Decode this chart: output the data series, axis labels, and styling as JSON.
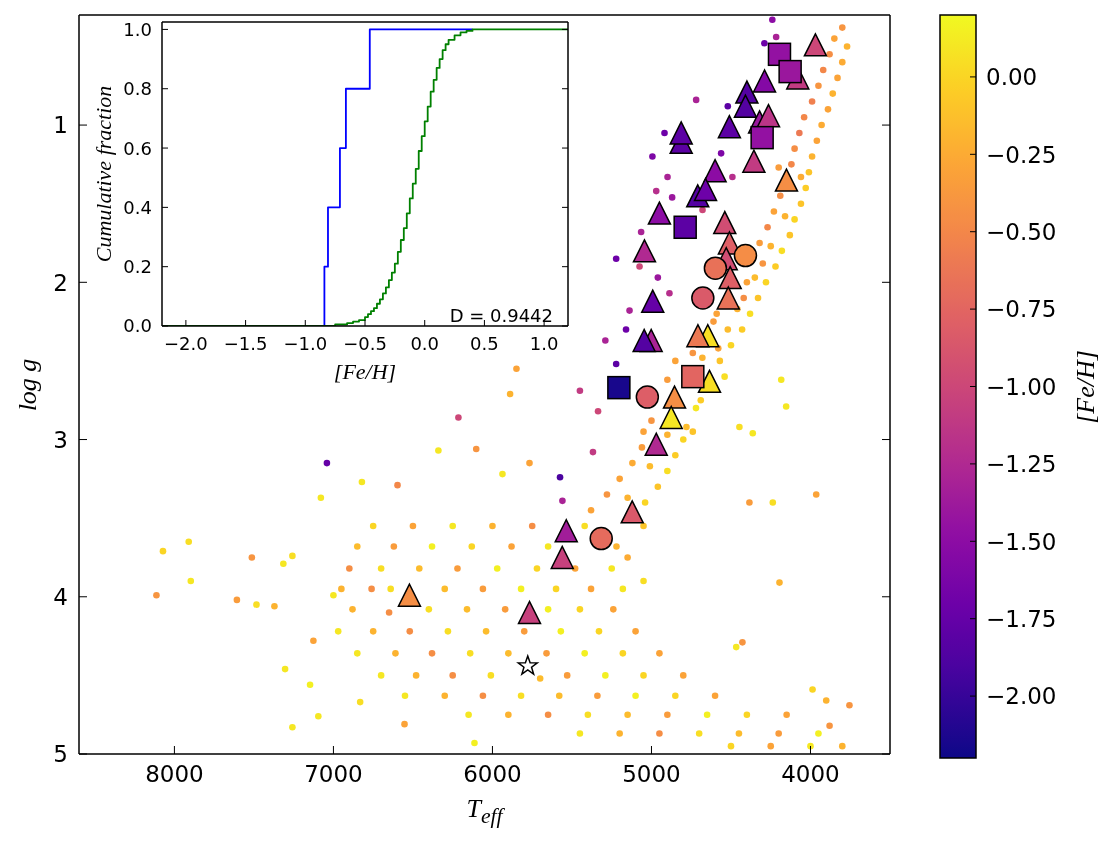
{
  "chart_data": [
    {
      "type": "scatter",
      "xlabel": "T$_{eff}$",
      "ylabel": "log g",
      "clabel": "[Fe/H]",
      "xlim": [
        8600,
        3500
      ],
      "xticks": [
        8000,
        7000,
        6000,
        5000,
        4000
      ],
      "ylim": [
        5,
        0.3
      ],
      "yticks": [
        1,
        2,
        3,
        4,
        5
      ],
      "clim": [
        -2.2,
        0.2
      ],
      "cticks": [
        {
          "value": 0,
          "label": "0.00"
        },
        {
          "value": -0.25,
          "label": "−0.25"
        },
        {
          "value": -0.5,
          "label": "−0.50"
        },
        {
          "value": -0.75,
          "label": "−0.75"
        },
        {
          "value": -1,
          "label": "−1.00"
        },
        {
          "value": -1.25,
          "label": "−1.25"
        },
        {
          "value": -1.5,
          "label": "−1.50"
        },
        {
          "value": -1.75,
          "label": "−1.75"
        },
        {
          "value": -2,
          "label": "−2.00"
        }
      ],
      "series": [
        {
          "marker": "circle",
          "x": [
            6750,
            6500,
            6250,
            6000,
            5750,
            5420,
            6850,
            6620,
            6380,
            6130,
            5880,
            5650,
            5220,
            6900,
            6700,
            6460,
            6220,
            5970,
            5720,
            5480,
            5250,
            6950,
            6760,
            6640,
            6300,
            6060,
            5820,
            5600,
            5380,
            5180,
            6880,
            6650,
            6400,
            6160,
            5920,
            5650,
            5450,
            5240,
            6970,
            6750,
            6520,
            6280,
            6040,
            5800,
            5570,
            5330,
            5100,
            6850,
            6610,
            6380,
            6140,
            5900,
            5660,
            5420,
            5180,
            4950,
            6700,
            6480,
            6250,
            6010,
            5700,
            5530,
            5290,
            5050,
            4800,
            6550,
            6300,
            6060,
            5820,
            5580,
            5340,
            5100,
            4850,
            4600,
            6150,
            5900,
            5650,
            5400,
            5150,
            4900,
            4650,
            4400,
            4150,
            5450,
            5200,
            4950,
            4700,
            4450,
            4200,
            3950,
            4500,
            4250,
            4000,
            3800,
            3800,
            3850,
            3770,
            3880,
            3800,
            3920,
            3830,
            3950,
            3860,
            3990,
            3890,
            4040,
            3930,
            4070,
            3960,
            4100,
            3990,
            4120,
            4010,
            4200,
            4030,
            4060,
            4190,
            4060,
            4230,
            4100,
            4160,
            4270,
            4130,
            4320,
            4180,
            4250,
            4300,
            4220,
            4400,
            4280,
            4350,
            4420,
            4330,
            4590,
            4380,
            4460,
            4610,
            4430,
            4580,
            4500,
            4520,
            4740,
            4570,
            4850,
            4540,
            4680,
            4900,
            4690,
            4720,
            4780,
            5000,
            4740,
            5050,
            4800,
            4900,
            5060,
            4850,
            5120,
            4900,
            5010,
            5200,
            4960,
            5280,
            5040,
            5150,
            5380,
            5050,
            5150,
            5050,
            4240,
            4290,
            4216,
            4719,
            4918,
            4994,
            4899,
            4970,
            4870,
            5065,
            5222,
            5075,
            4960,
            4887,
            4520,
            4491,
            4562,
            4679,
            5138,
            5160,
            5290,
            5222,
            5450,
            5336,
            5368,
            5575,
            5560,
            7041,
            6214,
            8113,
            8072,
            7910,
            7897,
            7513,
            7607,
            7484,
            7371,
            7315,
            7258,
            7304,
            7258,
            7147,
            7095,
            7079,
            6821,
            6597,
            6340,
            6102,
            5889,
            5849,
            7000,
            7126,
            6832,
            6553,
            6113,
            3964,
            4195,
            4237,
            4384,
            3987,
            3755,
            3901,
            3880,
            4467,
            4428,
            4184,
            4153,
            4447,
            4363,
            5767,
            5937
          ],
          "values": [
            3.55,
            3.55,
            3.55,
            3.55,
            3.55,
            3.55,
            3.68,
            3.68,
            3.68,
            3.68,
            3.68,
            3.68,
            3.68,
            3.82,
            3.82,
            3.82,
            3.82,
            3.82,
            3.82,
            3.82,
            3.82,
            3.95,
            3.95,
            3.95,
            3.95,
            3.95,
            3.95,
            3.95,
            3.95,
            3.95,
            4.08,
            4.1,
            4.08,
            4.08,
            4.08,
            4.08,
            4.08,
            4.08,
            4.22,
            4.22,
            4.22,
            4.22,
            4.22,
            4.22,
            4.22,
            4.22,
            4.22,
            4.36,
            4.36,
            4.36,
            4.36,
            4.36,
            4.36,
            4.36,
            4.36,
            4.36,
            4.5,
            4.5,
            4.5,
            4.5,
            4.52,
            4.5,
            4.5,
            4.5,
            4.5,
            4.63,
            4.63,
            4.63,
            4.63,
            4.63,
            4.63,
            4.63,
            4.63,
            4.63,
            4.75,
            4.75,
            4.75,
            4.75,
            4.75,
            4.75,
            4.75,
            4.75,
            4.75,
            4.87,
            4.87,
            4.87,
            4.87,
            4.87,
            4.87,
            4.87,
            4.95,
            4.95,
            4.95,
            4.95,
            0.38,
            0.45,
            0.5,
            0.55,
            0.6,
            0.65,
            0.7,
            0.75,
            0.8,
            0.85,
            0.9,
            0.95,
            1.0,
            1.05,
            1.1,
            1.15,
            1.2,
            1.25,
            1.3,
            1.27,
            1.4,
            1.33,
            1.45,
            1.5,
            1.55,
            1.6,
            1.58,
            1.65,
            1.7,
            1.75,
            1.8,
            1.77,
            1.88,
            1.9,
            2.0,
            2.0,
            1.97,
            2.1,
            2.1,
            2.2,
            2.2,
            2.17,
            2.25,
            2.3,
            2.42,
            2.4,
            2.3,
            2.45,
            2.5,
            2.5,
            2.6,
            2.48,
            2.62,
            2.75,
            2.8,
            2.92,
            2.88,
            2.95,
            2.95,
            3.0,
            2.97,
            3.05,
            3.1,
            3.15,
            3.2,
            3.17,
            3.25,
            3.3,
            3.35,
            3.4,
            3.37,
            3.45,
            3.55,
            3.75,
            3.9,
            0.33,
            0.48,
            0.44,
            0.84,
            1.05,
            1.2,
            1.33,
            1.42,
            1.46,
            1.68,
            1.85,
            1.9,
            1.97,
            2.07,
            0.88,
            1.33,
            1.18,
            1.54,
            2.18,
            2.3,
            2.37,
            2.52,
            2.69,
            2.82,
            3.08,
            3.24,
            3.39,
            3.15,
            2.86,
            3.99,
            3.71,
            3.65,
            3.9,
            3.75,
            4.02,
            4.05,
            4.06,
            3.79,
            3.74,
            4.46,
            4.83,
            4.56,
            4.76,
            3.37,
            3.27,
            3.29,
            3.07,
            3.06,
            2.71,
            2.55,
            3.99,
            4.28,
            4.67,
            4.81,
            4.93,
            3.35,
            3.91,
            3.4,
            3.4,
            4.59,
            4.69,
            4.66,
            4.82,
            4.32,
            4.29,
            2.62,
            2.79,
            2.92,
            2.96,
            3.15,
            3.22
          ],
          "cvalues": [
            0,
            -0.3,
            0.1,
            -0.2,
            -0.45,
            0.05,
            -0.15,
            -0.35,
            0.15,
            0,
            -0.3,
            0.1,
            -0.2,
            -0.45,
            0.05,
            -0.15,
            -0.35,
            0.15,
            0,
            -0.3,
            0.1,
            -0.2,
            -0.45,
            0.05,
            -0.15,
            -0.35,
            0.15,
            0,
            -0.3,
            0.1,
            -0.2,
            -0.45,
            0.05,
            -0.15,
            -0.35,
            0.15,
            0,
            -0.3,
            0.1,
            -0.2,
            -0.45,
            0.05,
            -0.15,
            -0.35,
            0.15,
            0,
            -0.3,
            0.1,
            -0.2,
            -0.45,
            0.05,
            -0.15,
            -0.35,
            0.15,
            0,
            -0.3,
            0.1,
            -0.2,
            -0.45,
            0.05,
            -0.15,
            -0.35,
            0.15,
            0,
            -0.3,
            0.1,
            -0.2,
            -0.45,
            0.05,
            -0.15,
            -0.35,
            0.15,
            0,
            -0.3,
            0.1,
            -0.2,
            -0.45,
            0.05,
            -0.15,
            -0.35,
            0.15,
            0,
            -0.3,
            0.1,
            -0.2,
            -0.45,
            0.05,
            -0.15,
            -0.35,
            0.15,
            0,
            -0.3,
            0.1,
            -0.2,
            -0.4,
            -0.3,
            -0.2,
            -0.45,
            -0.25,
            -0.5,
            -0.3,
            -0.4,
            -0.2,
            -0.55,
            -0.3,
            -0.5,
            -0.25,
            -0.6,
            -0.3,
            -0.45,
            -0.2,
            -0.5,
            -0.1,
            -0.35,
            -0.05,
            -0.25,
            -0.45,
            -0.1,
            -0.3,
            0,
            -0.2,
            -0.5,
            -0.1,
            -0.35,
            0.05,
            -0.2,
            -0.4,
            -0.05,
            -0.3,
            0,
            -0.15,
            -0.45,
            -0.1,
            -0.3,
            0.05,
            -0.2,
            -0.35,
            -0.05,
            -0.3,
            0,
            -0.15,
            -0.4,
            -0.1,
            -0.3,
            0.05,
            -0.2,
            -0.35,
            -0.05,
            0.1,
            -0.15,
            -0.4,
            -0.1,
            -0.3,
            0,
            -0.2,
            -0.35,
            -0.05,
            -0.25,
            0.05,
            -0.15,
            -0.3,
            -0.1,
            -0.4,
            0,
            -0.2,
            -0.3,
            -0.1,
            -0.25,
            0.05,
            -1.5,
            -1.7,
            -1.3,
            -1.3,
            -1.7,
            -1.6,
            -1.3,
            -1.2,
            -1.4,
            -1.3,
            -1.7,
            -1.0,
            -1.4,
            -1.2,
            -1.8,
            -1.2,
            -1.6,
            -1.0,
            -1.3,
            -1.7,
            -1.3,
            -1.8,
            -1.1,
            -1.0,
            -1.1,
            -1.9,
            -1.3,
            -1.75,
            -1.0,
            -0.4,
            0,
            0.05,
            0.1,
            -0.4,
            -0.35,
            0.05,
            -0.2,
            0.1,
            0.05,
            0.1,
            0.1,
            0.15,
            0.1,
            0.1,
            0.1,
            -0.5,
            0.1,
            -0.4,
            -0.2,
            -0.3,
            0.1,
            -0.3,
            0.05,
            -0.3,
            0.15,
            -0.3,
            -0.2,
            0.05,
            -0.35,
            0,
            -0.4,
            -0.2,
            -0.4,
            0.1,
            -0.4,
            0.1,
            0.1,
            0.05,
            0.1,
            -0.3,
            0.1
          ],
          "colors": [
            "#fad524",
            "#fba338",
            "#f5e723",
            "#fcb330",
            "#f58e45",
            "#f8de24",
            "#fcbc2d",
            "#f99c3c",
            "#f3f022",
            "#fad524",
            "#fba338",
            "#f5e723",
            "#fcb330",
            "#f58e45",
            "#f8de24",
            "#fcbc2d",
            "#f99c3c",
            "#f3f022",
            "#fad524",
            "#fba338",
            "#f5e723",
            "#fcb330",
            "#f58e45",
            "#f8de24",
            "#fcbc2d",
            "#f99c3c",
            "#f3f022",
            "#fad524",
            "#fba338",
            "#f5e723",
            "#fcb330",
            "#f58e45",
            "#f8de24",
            "#fcbc2d",
            "#f99c3c",
            "#f3f022",
            "#fad524",
            "#fba338",
            "#f5e723",
            "#fcb330",
            "#f58e45",
            "#f8de24",
            "#fcbc2d",
            "#f99c3c",
            "#f3f022",
            "#fad524",
            "#fba338",
            "#f5e723",
            "#fcb330",
            "#f58e45",
            "#f8de24",
            "#fcbc2d",
            "#f99c3c",
            "#f3f022",
            "#fad524",
            "#fba338",
            "#f5e723",
            "#fcb330",
            "#f58e45",
            "#f8de24",
            "#fcbc2d",
            "#f99c3c",
            "#f3f022",
            "#fad524",
            "#fba338",
            "#f5e723",
            "#fcb330",
            "#f58e45",
            "#f8de24",
            "#fcbc2d",
            "#f99c3c",
            "#f3f022",
            "#fad524",
            "#fba338",
            "#f5e723",
            "#fcb330",
            "#f58e45",
            "#f8de24",
            "#fcbc2d",
            "#f99c3c",
            "#f3f022",
            "#fad524",
            "#fba338",
            "#f5e723",
            "#fcb330",
            "#f58e45",
            "#f8de24",
            "#fcbc2d",
            "#f99c3c",
            "#f3f022",
            "#fad524",
            "#fba338",
            "#f5e723",
            "#fcb330",
            "#f79541",
            "#fba338",
            "#fcb330",
            "#f58e45",
            "#fcab34",
            "#f38749",
            "#fba338",
            "#f79541",
            "#fcb330",
            "#f0804e",
            "#fba338",
            "#f38749",
            "#fcab34",
            "#ec7953",
            "#fba338",
            "#f58e45",
            "#fcb330",
            "#f38749",
            "#fcc429",
            "#f99c3c",
            "#fccc26",
            "#fcab34",
            "#f58e45",
            "#fcc429",
            "#fba338",
            "#fad524",
            "#fcb330",
            "#f38749",
            "#fcc429",
            "#f99c3c",
            "#f8de24",
            "#fcb330",
            "#f79541",
            "#fccc26",
            "#fba338",
            "#fad524",
            "#fcbc2d",
            "#f58e45",
            "#fcc429",
            "#fba338",
            "#f8de24",
            "#fcb330",
            "#f99c3c",
            "#fccc26",
            "#fba338",
            "#fad524",
            "#fcbc2d",
            "#f79541",
            "#fcc429",
            "#fba338",
            "#f8de24",
            "#fcb330",
            "#f99c3c",
            "#fccc26",
            "#f5e723",
            "#fcbc2d",
            "#f79541",
            "#fcc429",
            "#fba338",
            "#fad524",
            "#fcb330",
            "#f99c3c",
            "#fccc26",
            "#fcab34",
            "#f8de24",
            "#fcbc2d",
            "#fba338",
            "#fcc429",
            "#f79541",
            "#fad524",
            "#fcb330",
            "#fba338",
            "#fcc429",
            "#fcab34",
            "#f8de24",
            "#8c0ca4",
            "#6d01a8",
            "#a92395",
            "#a92395",
            "#6d01a8",
            "#7d07a6",
            "#a92395",
            "#b62f8c",
            "#9a179d",
            "#a92395",
            "#6d01a8",
            "#cc4778",
            "#9a179d",
            "#b62f8c",
            "#5c01a4",
            "#b62f8c",
            "#7d07a6",
            "#cc4778",
            "#a92395",
            "#6d01a8",
            "#a92395",
            "#5c01a4",
            "#c13b82",
            "#cc4778",
            "#c13b82",
            "#4b03a0",
            "#a92395",
            "#6501a7",
            "#cc4778",
            "#f79541",
            "#fad524",
            "#f8de24",
            "#f5e723",
            "#f79541",
            "#f99c3c",
            "#f8de24",
            "#fcb330",
            "#f5e723",
            "#f8de24",
            "#f5e723",
            "#f5e723",
            "#f3f022",
            "#f5e723",
            "#f5e723",
            "#f5e723",
            "#f38749",
            "#f5e723",
            "#f79541",
            "#fcb330",
            "#fba338",
            "#f5e723",
            "#fba338",
            "#f8de24",
            "#fba338",
            "#f3f022",
            "#fba338",
            "#fcb330",
            "#f8de24",
            "#f99c3c",
            "#fad524",
            "#f79541",
            "#fcb330",
            "#f79541",
            "#f5e723",
            "#f79541",
            "#f5e723",
            "#f5e723",
            "#f8de24",
            "#f5e723",
            "#fba338",
            "#f5e723"
          ]
        },
        {
          "marker": "triangle",
          "x": [
            3969,
            4080,
            4289,
            4400,
            4409,
            4320,
            4264,
            4510,
            4813,
            4813,
            4356,
            4151,
            4600,
            4709,
            4660,
            4950,
            4539,
            5044,
            4510,
            4530,
            4505,
            4517,
            4992,
            5002,
            5046,
            4646,
            4708,
            4635,
            4855,
            4876,
            4970,
            5121,
            5536,
            5561,
            5767,
            6522
          ],
          "values": [
            0.49,
            0.7,
            0.72,
            0.79,
            0.88,
            0.98,
            0.94,
            1.01,
            1.11,
            1.05,
            1.23,
            1.35,
            1.29,
            1.45,
            1.41,
            1.56,
            1.62,
            1.8,
            1.75,
            1.85,
            1.97,
            2.1,
            2.12,
            2.37,
            2.37,
            2.34,
            2.34,
            2.63,
            2.73,
            2.86,
            3.03,
            3.46,
            3.58,
            3.75,
            4.1,
            3.99
          ],
          "cvalues": [
            -1.0,
            -1.1,
            -1.55,
            -1.85,
            -1.85,
            -1.4,
            -1.15,
            -1.8,
            -1.8,
            -1.8,
            -1.1,
            -0.45,
            -1.5,
            -1.85,
            -1.7,
            -1.5,
            -0.95,
            -1.25,
            -0.8,
            -0.95,
            -0.8,
            -0.65,
            -1.75,
            -1.3,
            -1.85,
            0.05,
            -0.6,
            0.05,
            -0.45,
            0.1,
            -1.25,
            -0.85,
            -1.35,
            -1.05,
            -1.05,
            -0.45
          ],
          "colors": [
            "#cc4778",
            "#c13b82",
            "#8409a5",
            "#5402a2",
            "#5402a2",
            "#9a179d",
            "#bb3587",
            "#5c01a4",
            "#5c01a4",
            "#5c01a4",
            "#c13b82",
            "#f58e45",
            "#8c0ca4",
            "#5402a2",
            "#6d01a8",
            "#8c0ca4",
            "#d04d73",
            "#b02991",
            "#de5f66",
            "#d04d73",
            "#de5f66",
            "#e97358",
            "#6501a7",
            "#a92395",
            "#5402a2",
            "#f8de24",
            "#ec7953",
            "#f8de24",
            "#f58e45",
            "#f5e723",
            "#b02991",
            "#d9596a",
            "#a11d99",
            "#c6417d",
            "#c6417d",
            "#f58e45"
          ]
        },
        {
          "marker": "circle",
          "x": [
            4409,
            4598,
            4677,
            5026,
            5316
          ],
          "values": [
            1.83,
            1.91,
            2.1,
            2.73,
            3.63
          ],
          "cvalues": [
            -0.46,
            -0.66,
            -0.84,
            -0.81,
            -0.71
          ],
          "colors": [
            "#f58d46",
            "#e87158",
            "#da5a69",
            "#dd5e67",
            "#e56b5d"
          ]
        },
        {
          "marker": "square",
          "x": [
            4195,
            4128,
            4304,
            4788,
            5205,
            4740
          ],
          "values": [
            0.55,
            0.66,
            1.08,
            1.65,
            2.67,
            2.6
          ],
          "cvalues": [
            -1.45,
            -1.4,
            -1.45,
            -1.8,
            -2.15,
            -0.75
          ],
          "colors": [
            "#9311a2",
            "#9a179d",
            "#9311a2",
            "#5c01a4",
            "#18078c",
            "#e26561"
          ]
        },
        {
          "marker": "star",
          "color": "#000000",
          "x": [
            5778
          ],
          "values": [
            4.44
          ]
        }
      ]
    },
    {
      "type": "step",
      "xlabel": "[Fe/H]",
      "ylabel": "Cumulative fraction",
      "annotations": [
        "D = 0.9442"
      ],
      "xlim": [
        -2.2,
        1.2
      ],
      "xticks": [
        {
          "value": -2,
          "label": "−2.0"
        },
        {
          "value": -1.5,
          "label": "−1.5"
        },
        {
          "value": -1,
          "label": "−1.0"
        },
        {
          "value": -0.5,
          "label": "−0.5"
        },
        {
          "value": 0,
          "label": "0.0"
        },
        0.5,
        {
          "value": 1,
          "label": "1.0"
        }
      ],
      "ylim": [
        0,
        1.025
      ],
      "yticks": [
        {
          "value": 0,
          "label": "0.0"
        },
        0.2,
        0.4,
        0.6,
        0.8,
        {
          "value": 1,
          "label": "1.0"
        }
      ],
      "series": [
        {
          "color": "#0000ff",
          "x": [
            -0.84,
            -0.84,
            -0.81,
            -0.71,
            -0.66,
            -0.46,
            0.4
          ],
          "values": [
            0,
            0.2,
            0.4,
            0.6,
            0.8,
            1.0,
            1.0
          ]
        },
        {
          "color": "#008000",
          "x": [
            -2.2,
            -0.85,
            -0.75,
            -0.7,
            -0.65,
            -0.6,
            -0.55,
            -0.5,
            -0.475,
            -0.45,
            -0.425,
            -0.4,
            -0.375,
            -0.35,
            -0.325,
            -0.3,
            -0.275,
            -0.25,
            -0.225,
            -0.2,
            -0.175,
            -0.15,
            -0.125,
            -0.1,
            -0.075,
            -0.05,
            -0.025,
            0,
            0.025,
            0.05,
            0.075,
            0.1,
            0.125,
            0.15,
            0.175,
            0.2,
            0.25,
            0.3,
            0.35,
            0.4,
            0.5,
            1.2
          ],
          "values": [
            0,
            0,
            0.005,
            0.005,
            0.01,
            0.015,
            0.02,
            0.03,
            0.04,
            0.05,
            0.06,
            0.075,
            0.09,
            0.11,
            0.13,
            0.155,
            0.18,
            0.21,
            0.25,
            0.29,
            0.33,
            0.38,
            0.43,
            0.48,
            0.53,
            0.59,
            0.64,
            0.69,
            0.74,
            0.79,
            0.83,
            0.87,
            0.9,
            0.93,
            0.95,
            0.965,
            0.98,
            0.99,
            0.995,
            1.0,
            1.0,
            1.0
          ]
        }
      ]
    }
  ]
}
